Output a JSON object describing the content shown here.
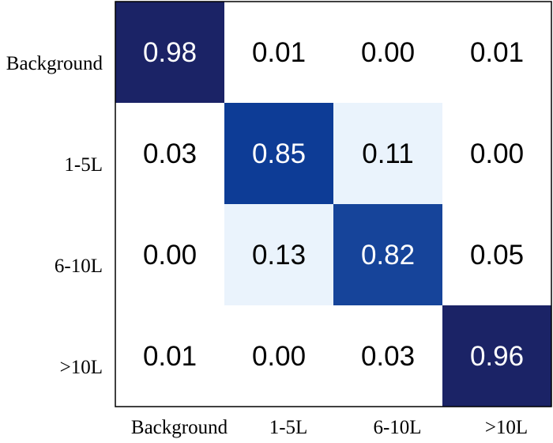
{
  "chart_data": {
    "type": "heatmap",
    "x_categories": [
      "Background",
      "1-5L",
      "6-10L",
      ">10L"
    ],
    "y_categories": [
      "Background",
      "1-5L",
      "6-10L",
      ">10L"
    ],
    "values": [
      [
        0.98,
        0.01,
        0.0,
        0.01
      ],
      [
        0.03,
        0.85,
        0.11,
        0.0
      ],
      [
        0.0,
        0.13,
        0.82,
        0.05
      ],
      [
        0.01,
        0.0,
        0.03,
        0.96
      ]
    ],
    "value_labels": [
      [
        "0.98",
        "0.01",
        "0.00",
        "0.01"
      ],
      [
        "0.03",
        "0.85",
        "0.11",
        "0.00"
      ],
      [
        "0.00",
        "0.13",
        "0.82",
        "0.05"
      ],
      [
        "0.01",
        "0.00",
        "0.03",
        "0.96"
      ]
    ],
    "title": "",
    "xlabel": "",
    "ylabel": "",
    "colormap": "Blues",
    "grid": false,
    "colors": {
      "high": "#1b2366",
      "mid": "#0d3c96",
      "low": "#eaf3fc",
      "zero": "#ffffff",
      "text_dark": "#000000",
      "text_light": "#ffffff"
    }
  }
}
